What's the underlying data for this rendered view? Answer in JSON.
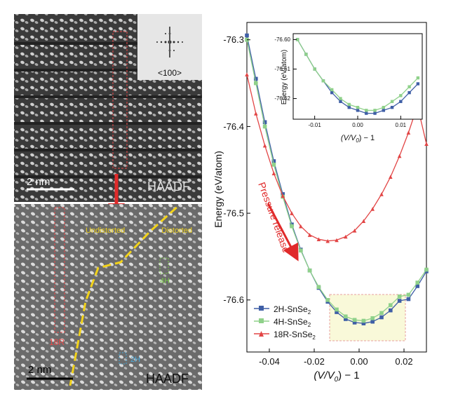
{
  "panels": {
    "top_image": {
      "fft_label": "<100>",
      "scale_label": "2 nm",
      "mode_label": "HAADF"
    },
    "bottom_image": {
      "labels": {
        "undistorted": "Undistorted",
        "distorted": "Distorted",
        "r18": "18R",
        "h4": "4H",
        "h2": "2H"
      },
      "scale_label": "2 nm",
      "mode_label": "HAADF"
    }
  },
  "plot": {
    "annotation": "Pressure release",
    "legend": {
      "s2H": "2H-SnSe",
      "s4H": "4H-SnSe",
      "s18R": "18R-SnSe",
      "subscript": "2"
    }
  },
  "chart_data": [
    {
      "type": "line",
      "xlabel_main": "(V/V",
      "xlabel_sub": "0",
      "xlabel_tail": ") − 1",
      "ylabel": "Energy (eV/atom)",
      "xlim": [
        -0.05,
        0.03
      ],
      "ylim": [
        -76.66,
        -76.28
      ],
      "xticks": [
        -0.04,
        -0.02,
        0.0,
        0.02
      ],
      "yticks": [
        -76.3,
        -76.4,
        -76.5,
        -76.6
      ],
      "xtick_labels": [
        "-0.04",
        "-0.02",
        "0.00",
        "0.02"
      ],
      "ytick_labels": [
        "-76.3",
        "-76.4",
        "-76.5",
        "-76.6"
      ],
      "series": [
        {
          "name": "2H-SnSe2",
          "color": "#3f5fa6",
          "marker": "square",
          "x": [
            -0.05,
            -0.046,
            -0.042,
            -0.038,
            -0.034,
            -0.03,
            -0.026,
            -0.022,
            -0.018,
            -0.014,
            -0.01,
            -0.006,
            -0.002,
            0.002,
            0.006,
            0.01,
            0.014,
            0.018,
            0.022,
            0.026,
            0.03
          ],
          "y": [
            -76.295,
            -76.345,
            -76.395,
            -76.44,
            -76.478,
            -76.513,
            -76.542,
            -76.566,
            -76.586,
            -76.602,
            -76.614,
            -76.622,
            -76.626,
            -76.627,
            -76.625,
            -76.62,
            -76.612,
            -76.601,
            -76.599,
            -76.584,
            -76.567
          ]
        },
        {
          "name": "4H-SnSe2",
          "color": "#8fd18a",
          "marker": "square",
          "x": [
            -0.05,
            -0.046,
            -0.042,
            -0.038,
            -0.034,
            -0.03,
            -0.026,
            -0.022,
            -0.018,
            -0.014,
            -0.01,
            -0.006,
            -0.002,
            0.002,
            0.006,
            0.01,
            0.014,
            0.018,
            0.022,
            0.026,
            0.03
          ],
          "y": [
            -76.3,
            -76.35,
            -76.4,
            -76.444,
            -76.481,
            -76.515,
            -76.543,
            -76.566,
            -76.585,
            -76.6,
            -76.611,
            -76.619,
            -76.623,
            -76.624,
            -76.621,
            -76.615,
            -76.606,
            -76.596,
            -76.594,
            -76.58,
            -76.565
          ]
        },
        {
          "name": "18R-SnSe2",
          "color": "#e24545",
          "marker": "triangle",
          "x": [
            -0.05,
            -0.046,
            -0.042,
            -0.038,
            -0.034,
            -0.03,
            -0.026,
            -0.022,
            -0.018,
            -0.014,
            -0.01,
            -0.006,
            -0.002,
            0.002,
            0.006,
            0.01,
            0.014,
            0.018,
            0.022,
            0.026,
            0.03
          ],
          "y": [
            -76.34,
            -76.385,
            -76.422,
            -76.454,
            -76.48,
            -76.5,
            -76.515,
            -76.525,
            -76.53,
            -76.532,
            -76.531,
            -76.527,
            -76.52,
            -76.509,
            -76.495,
            -76.478,
            -76.458,
            -76.434,
            -76.407,
            -76.376,
            -76.42
          ]
        }
      ]
    },
    {
      "type": "line",
      "xlabel_main": "(V/V",
      "xlabel_sub": "0",
      "xlabel_tail": ") − 1",
      "ylabel": "Energy (eV/atom)",
      "xlim": [
        -0.015,
        0.015
      ],
      "ylim": [
        -76.627,
        -76.598
      ],
      "xticks": [
        -0.01,
        0.0,
        0.01
      ],
      "yticks": [
        -76.6,
        -76.61,
        -76.62
      ],
      "xtick_labels": [
        "-0.01",
        "0.00",
        "0.01"
      ],
      "ytick_labels": [
        "-76.60",
        "-76.61",
        "-76.62"
      ],
      "series": [
        {
          "name": "2H-SnSe2",
          "color": "#3f5fa6",
          "marker": "square",
          "x": [
            -0.014,
            -0.012,
            -0.01,
            -0.008,
            -0.006,
            -0.004,
            -0.002,
            0.0,
            0.002,
            0.004,
            0.006,
            0.008,
            0.01,
            0.012,
            0.014
          ],
          "y": [
            -76.6,
            -76.605,
            -76.61,
            -76.614,
            -76.618,
            -76.621,
            -76.623,
            -76.624,
            -76.625,
            -76.625,
            -76.624,
            -76.623,
            -76.621,
            -76.618,
            -76.615
          ]
        },
        {
          "name": "4H-SnSe2",
          "color": "#8fd18a",
          "marker": "square",
          "x": [
            -0.014,
            -0.012,
            -0.01,
            -0.008,
            -0.006,
            -0.004,
            -0.002,
            0.0,
            0.002,
            0.004,
            0.006,
            0.008,
            0.01,
            0.012,
            0.014
          ],
          "y": [
            -76.6,
            -76.605,
            -76.61,
            -76.614,
            -76.617,
            -76.62,
            -76.622,
            -76.623,
            -76.624,
            -76.624,
            -76.623,
            -76.621,
            -76.619,
            -76.616,
            -76.613
          ]
        }
      ]
    }
  ]
}
